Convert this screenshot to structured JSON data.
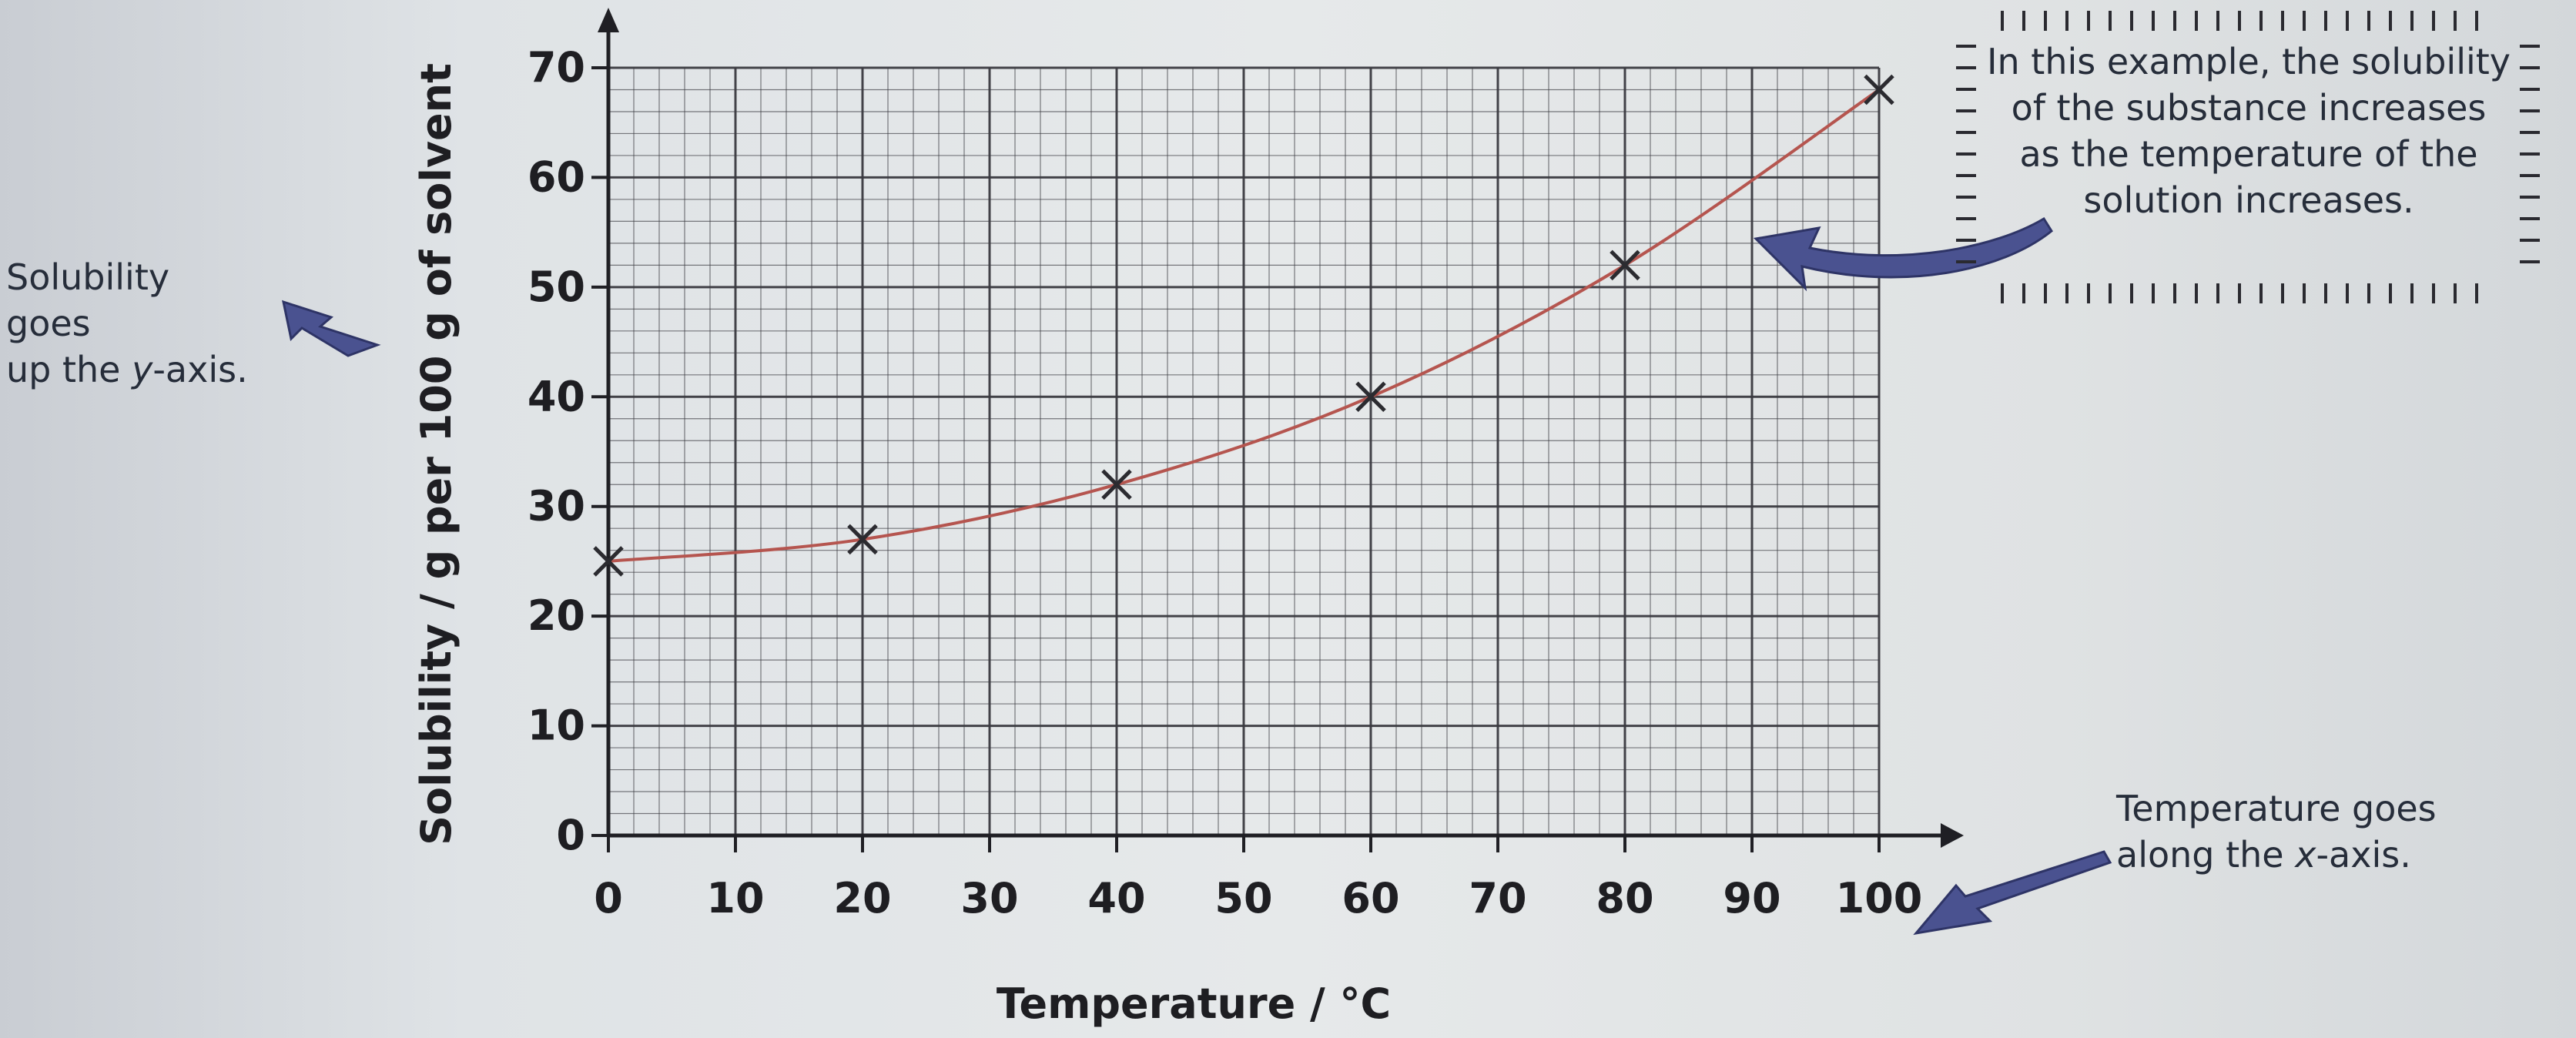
{
  "chart_data": {
    "type": "scatter",
    "xlabel": "Temperature / °C",
    "ylabel": "Solubility / g per 100 g of solvent",
    "xlim": [
      0,
      100
    ],
    "ylim": [
      0,
      70
    ],
    "x_ticks": [
      "0",
      "10",
      "20",
      "30",
      "40",
      "50",
      "60",
      "70",
      "80",
      "90",
      "100"
    ],
    "y_ticks": [
      "0",
      "10",
      "20",
      "30",
      "40",
      "50",
      "60",
      "70"
    ],
    "grid": true,
    "x": [
      0,
      20,
      40,
      60,
      80,
      100
    ],
    "y": [
      25,
      27,
      32,
      40,
      52,
      68
    ],
    "trend": "smooth curve",
    "marker": "cross",
    "line_color": "#b5554f",
    "marker_color": "#2b2b30"
  },
  "annotations": {
    "left": [
      "Solubility goes",
      "up the ",
      "y",
      "-axis."
    ],
    "top": [
      "In this example, the solubility",
      "of the substance increases",
      "as the temperature of the",
      "solution increases."
    ],
    "bottom": [
      "Temperature goes",
      "along the ",
      "x",
      "-axis."
    ]
  },
  "colors": {
    "arrow": "#4a5290",
    "grid": "#3a3a40",
    "axis": "#1f1f24"
  }
}
